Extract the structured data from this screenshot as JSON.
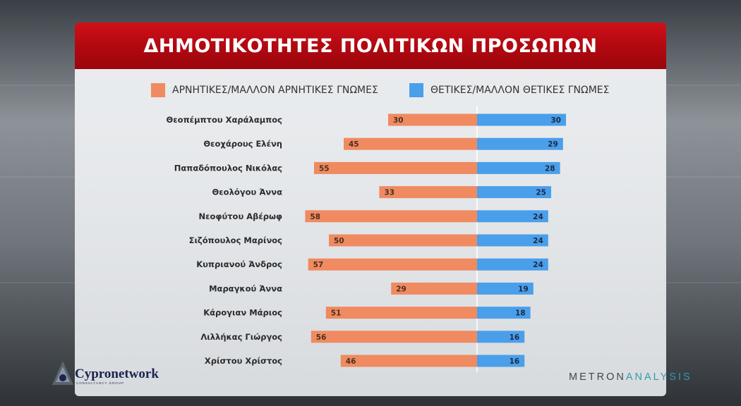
{
  "title": "ΔΗΜΟΤΙΚΟΤΗΤΕΣ ΠΟΛΙΤΙΚΩΝ ΠΡΟΣΩΠΩΝ",
  "colors": {
    "negative": "#f08a60",
    "positive": "#4a9fea",
    "title_red": "#c00c14"
  },
  "legend": {
    "negative": "ΑΡΝΗΤΙΚΕΣ/ΜΑΛΛΟΝ ΑΡΝΗΤΙΚΕΣ ΓΝΩΜΕΣ",
    "positive": "ΘΕΤΙΚΕΣ/ΜΑΛΛΟΝ ΘΕΤΙΚΕΣ ΓΝΩΜΕΣ"
  },
  "logos": {
    "left_name": "Cypronetwork",
    "left_sub": "CONSULTANCY GROUP",
    "right_part1": "METRON",
    "right_part2": "ANALYSIS",
    "left_icon": "cypronetwork-triangle-logo"
  },
  "chart_data": {
    "type": "bar",
    "orientation": "horizontal-diverging",
    "categories": [
      "Θεοπέμπτου Χαράλαμπος",
      "Θεοχάρους Ελένη",
      "Παπαδόπουλος Νικόλας",
      "Θεολόγου Άννα",
      "Νεοφύτου Αβέρωφ",
      "Σιζόπουλος Μαρίνος",
      "Κυπριανού Άνδρος",
      "Μαραγκού Άννα",
      "Κάρογιαν Μάριος",
      "Λιλλήκας Γιώργος",
      "Χρίστου Χρίστος"
    ],
    "series": [
      {
        "name": "ΑΡΝΗΤΙΚΕΣ/ΜΑΛΛΟΝ ΑΡΝΗΤΙΚΕΣ ΓΝΩΜΕΣ",
        "values": [
          30,
          45,
          55,
          33,
          58,
          50,
          57,
          29,
          51,
          56,
          46
        ]
      },
      {
        "name": "ΘΕΤΙΚΕΣ/ΜΑΛΛΟΝ ΘΕΤΙΚΕΣ ΓΝΩΜΕΣ",
        "values": [
          30,
          29,
          28,
          25,
          24,
          24,
          24,
          19,
          18,
          16,
          16
        ]
      }
    ],
    "legend": "top"
  }
}
